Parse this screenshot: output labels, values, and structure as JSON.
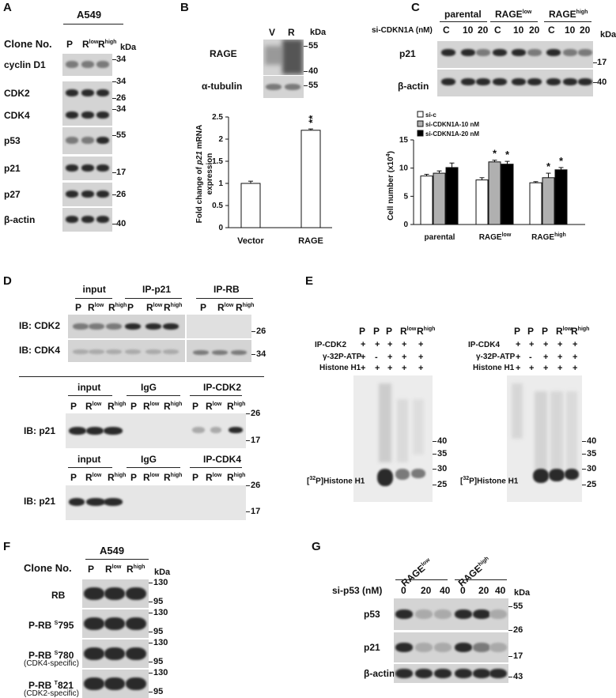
{
  "panels": {
    "A": {
      "label": "A",
      "cell_line": "A549",
      "clone_title": "Clone No.",
      "lanes": [
        "P",
        "R",
        "R"
      ],
      "lane_sups": [
        "",
        "low",
        "high"
      ],
      "kda": "kDa",
      "rows": [
        {
          "name": "cyclin D1",
          "mw": [
            "34"
          ]
        },
        {
          "name": "CDK2",
          "mw": [
            "34",
            "26"
          ]
        },
        {
          "name": "CDK4",
          "mw": [
            "34"
          ]
        },
        {
          "name": "p53",
          "mw": [
            "55"
          ]
        },
        {
          "name": "p21",
          "mw": [
            "17"
          ]
        },
        {
          "name": "p27",
          "mw": [
            "26"
          ]
        },
        {
          "name": "β-actin",
          "mw": [
            "40"
          ]
        }
      ]
    },
    "B": {
      "label": "B",
      "lanes": [
        "V",
        "R"
      ],
      "kda": "kDa",
      "rows": [
        {
          "name": "RAGE",
          "mw": [
            "55",
            "40"
          ]
        },
        {
          "name": "α-tubulin",
          "mw": [
            "55"
          ]
        }
      ],
      "significance": "**",
      "ylabel_part1": "Fold change of ",
      "ylabel_gene": "p21",
      "ylabel_part2": " mRNA",
      "ylabel_line2": "expression"
    },
    "C": {
      "label": "C",
      "groups": [
        {
          "name": "parental",
          "sup": ""
        },
        {
          "name": "RAGE",
          "sup": "low"
        },
        {
          "name": "RAGE",
          "sup": "high"
        }
      ],
      "treatment_label": "si-CDKN1A (nM)",
      "conc": [
        "C",
        "10",
        "20"
      ],
      "kda": "kDa",
      "rows": [
        {
          "name": "p21",
          "mw": [
            "17"
          ]
        },
        {
          "name": "β-actin",
          "mw": [
            "40"
          ]
        }
      ],
      "legend": [
        "si-c",
        "si-CDKN1A-10 nM",
        "si-CDKN1A-20 nM"
      ],
      "ylabel": "Cell number (x10",
      "ylabel_sup": "4",
      "ylabel_end": ")",
      "significance": "*"
    },
    "D": {
      "label": "D",
      "top_groups": [
        "input",
        "IP-p21",
        "IP-RB"
      ],
      "bottom_groups_1": [
        "input",
        "IgG",
        "IP-CDK2"
      ],
      "bottom_groups_2": [
        "input",
        "IgG",
        "IP-CDK4"
      ],
      "lanes": [
        "P",
        "R",
        "R"
      ],
      "lane_sups": [
        "",
        "low",
        "high"
      ],
      "rows_top": [
        {
          "name": "IB: CDK2",
          "mw": "26"
        },
        {
          "name": "IB: CDK4",
          "mw": "34"
        }
      ],
      "row_bottom": "IB: p21",
      "mw_bottom": [
        "26",
        "17"
      ]
    },
    "E": {
      "label": "E",
      "lane_letters": [
        "P",
        "P",
        "P",
        "R",
        "R"
      ],
      "lane_sups": [
        "",
        "",
        "",
        "low",
        "high"
      ],
      "ip1": "IP-CDK2",
      "ip2": "IP-CDK4",
      "atp": "γ-32P-ATP",
      "histone": "Histone H1",
      "ip_signs": [
        "+",
        "+",
        "+",
        "+",
        "+"
      ],
      "atp_signs": [
        "+",
        "-",
        "+",
        "+",
        "+"
      ],
      "histone_signs": [
        "+",
        "+",
        "+",
        "+",
        "+"
      ],
      "band_label_pre": "[",
      "band_label_iso": "32",
      "band_label_post": "P]Histone H1",
      "mw": [
        "40",
        "35",
        "30",
        "25"
      ]
    },
    "F": {
      "label": "F",
      "cell_line": "A549",
      "clone_title": "Clone No.",
      "lanes": [
        "P",
        "R",
        "R"
      ],
      "lane_sups": [
        "",
        "low",
        "high"
      ],
      "kda": "kDa",
      "rows": [
        {
          "name": "RB",
          "site_sup": "",
          "site": "",
          "note": "",
          "mw": [
            "130",
            "95"
          ]
        },
        {
          "name": "P-RB ",
          "site_sup": "S",
          "site": "795",
          "note": "",
          "mw": [
            "130",
            "95"
          ]
        },
        {
          "name": "P-RB ",
          "site_sup": "S",
          "site": "780",
          "note": "(CDK4-specific)",
          "mw": [
            "130",
            "95"
          ]
        },
        {
          "name": "P-RB ",
          "site_sup": "T",
          "site": "821",
          "note": "(CDK2-specific)",
          "mw": [
            "130",
            "95"
          ]
        }
      ]
    },
    "G": {
      "label": "G",
      "groups": [
        {
          "name": "RAGE",
          "sup": "low"
        },
        {
          "name": "RAGE",
          "sup": "high"
        }
      ],
      "treatment_label": "si-p53 (nM)",
      "conc": [
        "0",
        "20",
        "40",
        "0",
        "20",
        "40"
      ],
      "kda": "kDa",
      "rows": [
        {
          "name": "p53",
          "mw": "55"
        },
        {
          "name": "p21",
          "mw": "17"
        },
        {
          "name": "β-actin",
          "mw": "43"
        }
      ],
      "mw_mid": "26"
    }
  },
  "chart_data": [
    {
      "type": "bar",
      "panel": "B",
      "categories": [
        "Vector",
        "RAGE"
      ],
      "values": [
        1.0,
        2.2
      ],
      "errors": [
        0.05,
        0.03
      ],
      "ylabel": "Fold change of p21 mRNA expression",
      "ylim": [
        0,
        2.5
      ],
      "yticks": [
        "0",
        "0.5",
        "1",
        "1.5",
        "2",
        "2.5"
      ],
      "annotations": [
        "**"
      ]
    },
    {
      "type": "bar",
      "panel": "C",
      "categories": [
        "parental",
        "RAGElow",
        "RAGEhigh"
      ],
      "series": [
        {
          "name": "si-c",
          "values": [
            8.6,
            7.9,
            7.4
          ],
          "errors": [
            0.3,
            0.4,
            0.2
          ],
          "color": "#ffffff"
        },
        {
          "name": "si-CDKN1A-10 nM",
          "values": [
            9.1,
            11.1,
            8.3
          ],
          "errors": [
            0.4,
            0.3,
            0.8
          ],
          "color": "#b0b0b0"
        },
        {
          "name": "si-CDKN1A-20 nM",
          "values": [
            10.1,
            10.7,
            9.7
          ],
          "errors": [
            0.8,
            0.5,
            0.4
          ],
          "color": "#000000"
        }
      ],
      "ylabel": "Cell number (x104)",
      "ylim": [
        0,
        15
      ],
      "yticks": [
        "0",
        "5",
        "10",
        "15"
      ],
      "annotations": [
        "*",
        "*",
        "*",
        "*"
      ]
    }
  ]
}
